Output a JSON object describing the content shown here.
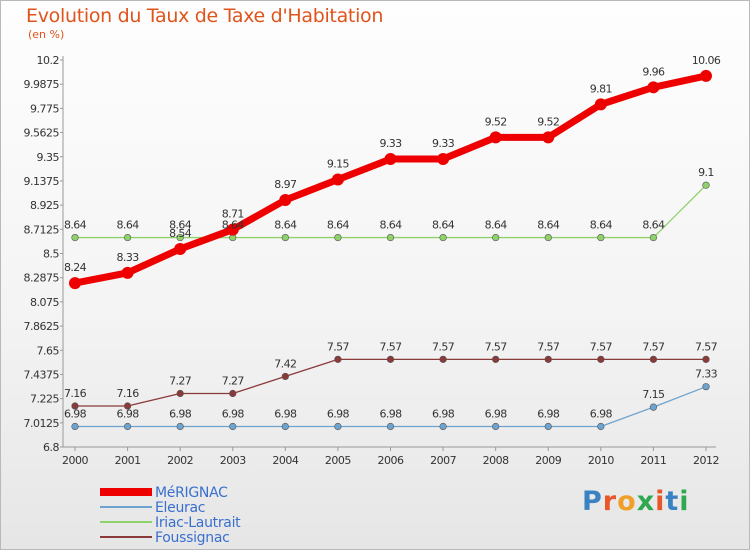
{
  "title": "Evolution du Taux de Taxe d'Habitation",
  "subtitle": "(en %)",
  "logo": "Proxiti",
  "chart_data": {
    "type": "line",
    "title": "Evolution du Taux de Taxe d'Habitation",
    "ylabel": "(en %)",
    "xlabel": "",
    "x": [
      "2000",
      "2001",
      "2002",
      "2003",
      "2004",
      "2005",
      "2006",
      "2007",
      "2008",
      "2009",
      "2010",
      "2011",
      "2012"
    ],
    "ylim": [
      6.8,
      10.2
    ],
    "yticks": [
      "6.8",
      "7.0125",
      "7.225",
      "7.4375",
      "7.65",
      "7.8625",
      "8.075",
      "8.2875",
      "8.5",
      "8.7125",
      "8.925",
      "9.1375",
      "9.35",
      "9.5625",
      "9.775",
      "9.9875",
      "10.2"
    ],
    "grid": false,
    "legend_position": "bottom-left",
    "series": [
      {
        "name": "MéRIGNAC",
        "color": "#ee0000",
        "style": "thick",
        "values": [
          8.24,
          8.33,
          8.54,
          8.71,
          8.97,
          9.15,
          9.33,
          9.33,
          9.52,
          9.52,
          9.81,
          9.96,
          10.06
        ],
        "labels": [
          "8.24",
          "8.33",
          "8.54",
          "8.71",
          "8.97",
          "9.15",
          "9.33",
          "9.33",
          "9.52",
          "9.52",
          "9.81",
          "9.96",
          "10.06"
        ]
      },
      {
        "name": "Eleurac",
        "color": "#6ea3cf",
        "style": "thin",
        "values": [
          6.98,
          6.98,
          6.98,
          6.98,
          6.98,
          6.98,
          6.98,
          6.98,
          6.98,
          6.98,
          6.98,
          7.15,
          7.33
        ],
        "labels": [
          "6.98",
          "6.98",
          "6.98",
          "6.98",
          "6.98",
          "6.98",
          "6.98",
          "6.98",
          "6.98",
          "6.98",
          "6.98",
          "7.15",
          "7.33"
        ]
      },
      {
        "name": "Iriac-Lautrait",
        "color": "#8fd16a",
        "style": "thin",
        "values": [
          8.64,
          8.64,
          8.64,
          8.64,
          8.64,
          8.64,
          8.64,
          8.64,
          8.64,
          8.64,
          8.64,
          8.64,
          9.1
        ],
        "labels": [
          "8.64",
          "8.64",
          "8.64",
          "8.64",
          "8.64",
          "8.64",
          "8.64",
          "8.64",
          "8.64",
          "8.64",
          "8.64",
          "8.64",
          "9.1"
        ]
      },
      {
        "name": "Foussignac",
        "color": "#8b3a3a",
        "style": "thin",
        "values": [
          7.16,
          7.16,
          7.27,
          7.27,
          7.42,
          7.57,
          7.57,
          7.57,
          7.57,
          7.57,
          7.57,
          7.57,
          7.57
        ],
        "labels": [
          "7.16",
          "7.16",
          "7.27",
          "7.27",
          "7.42",
          "7.57",
          "7.57",
          "7.57",
          "7.57",
          "7.57",
          "7.57",
          "7.57",
          "7.57"
        ]
      }
    ]
  },
  "colors": {
    "title": "#e0541c",
    "axis": "#999999",
    "tick_label": "#333333",
    "data_label": "#333333",
    "legend_text": "#3a6fd0",
    "logo_letters": [
      "#3b82c4",
      "#e8562a",
      "#f0a028",
      "#2fa84f",
      "#e8562a",
      "#3b82c4",
      "#2fa84f"
    ]
  }
}
